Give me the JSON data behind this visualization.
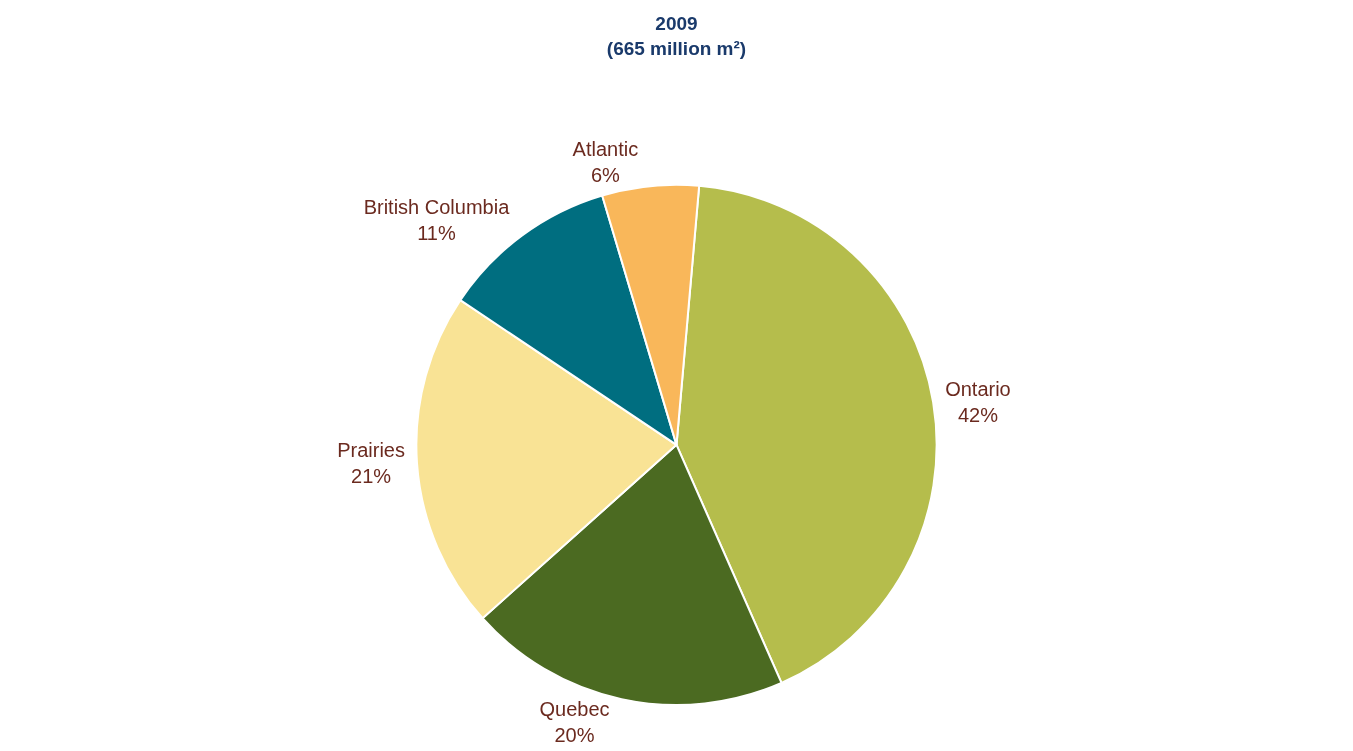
{
  "chart_data": {
    "type": "pie",
    "title": "2009\n(665 million m²)",
    "categories": [
      "Ontario",
      "Quebec",
      "Prairies",
      "British Columbia",
      "Atlantic"
    ],
    "values": [
      42,
      20,
      21,
      11,
      6
    ],
    "value_labels": [
      "42%",
      "20%",
      "21%",
      "11%",
      "6%"
    ],
    "colors": [
      "#b5bd4c",
      "#4b6a21",
      "#f9e395",
      "#006e80",
      "#f9b75a"
    ],
    "legend": false
  }
}
